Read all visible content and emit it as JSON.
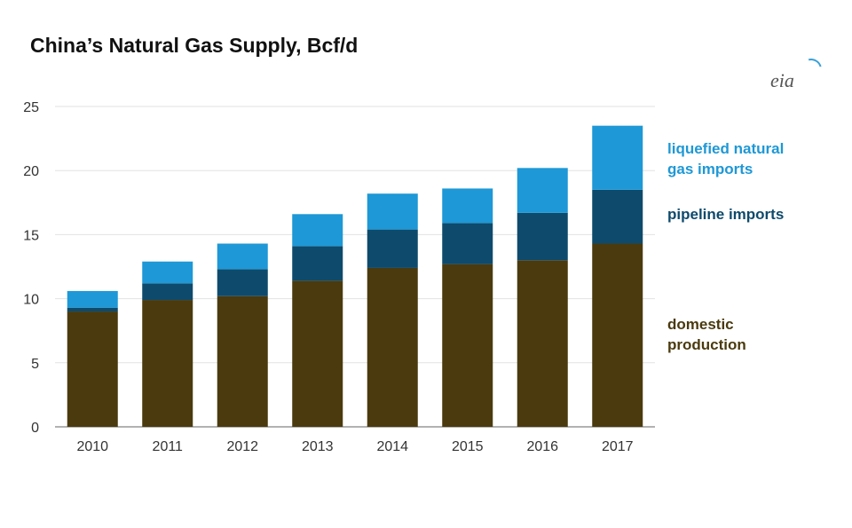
{
  "chart_data": {
    "type": "bar",
    "stacked": true,
    "title": "China’s Natural Gas Supply, Bcf/d",
    "categories": [
      "2010",
      "2011",
      "2012",
      "2013",
      "2014",
      "2015",
      "2016",
      "2017"
    ],
    "series": [
      {
        "name": "domestic production",
        "color": "#4a3a0e",
        "values": [
          9.0,
          9.9,
          10.2,
          11.4,
          12.4,
          12.7,
          13.0,
          14.3
        ]
      },
      {
        "name": "pipeline imports",
        "color": "#0e4a6c",
        "values": [
          0.3,
          1.3,
          2.1,
          2.7,
          3.0,
          3.2,
          3.7,
          4.2
        ]
      },
      {
        "name": "liquefied natural gas imports",
        "color": "#1e98d6",
        "values": [
          1.3,
          1.7,
          2.0,
          2.5,
          2.8,
          2.7,
          3.5,
          5.0
        ]
      }
    ],
    "ylim": [
      0,
      25
    ],
    "yticks": [
      0,
      5,
      10,
      15,
      20,
      25
    ],
    "grid": true,
    "legend_placement": "right",
    "legend": {
      "lng_line1": "liquefied natural",
      "lng_line2": "gas imports",
      "pipeline": "pipeline imports",
      "domestic_line1": "domestic",
      "domestic_line2": "production"
    }
  },
  "logo_text": "eia"
}
